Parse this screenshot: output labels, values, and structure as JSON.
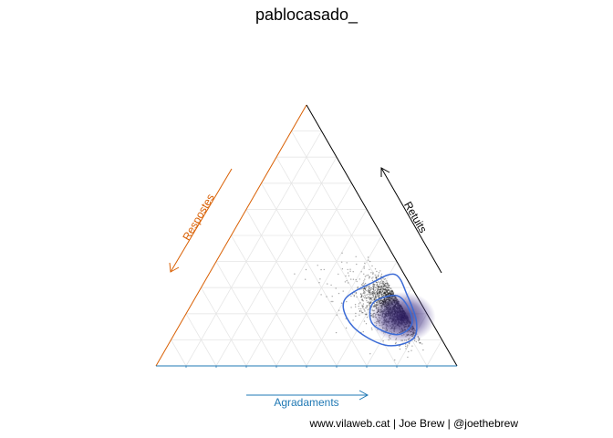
{
  "chart_data": {
    "type": "scatter",
    "subtype": "ternary",
    "title": "pablocasado_",
    "axes": {
      "bottom": {
        "label": "Agradaments",
        "color": "#1f78b4",
        "arrow": "right"
      },
      "left": {
        "label": "Respostes",
        "color": "#d95f02",
        "arrow": "down-left"
      },
      "right": {
        "label": "Retuits",
        "color": "#000000",
        "arrow": "up-left"
      }
    },
    "grid": true,
    "grid_step": 0.1,
    "scatter_center": {
      "agradaments": 0.7,
      "retuits": 0.22,
      "respostes": 0.08
    },
    "density_contours": 2,
    "contour_color": "#3b6bd6",
    "fill_color": "#2a1a5e",
    "point_color": "#000000"
  },
  "credit": "www.vilaweb.cat | Joe Brew | @joethebrew"
}
